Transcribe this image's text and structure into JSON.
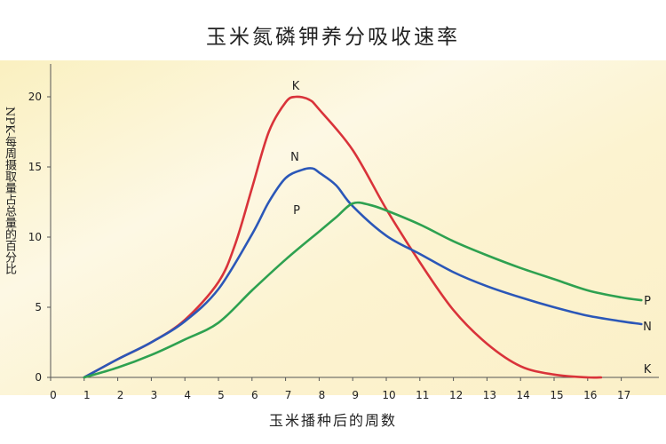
{
  "chart_data": {
    "type": "line",
    "title": "玉米氮磷钾养分吸收速率",
    "xlabel": "玉米播种后的周数",
    "ylabel": "NPK-每周摄取量占总量的百分比",
    "xlim": [
      0,
      18
    ],
    "ylim": [
      0,
      22
    ],
    "xticks": [
      0,
      1,
      2,
      3,
      4,
      5,
      6,
      7,
      8,
      9,
      10,
      11,
      12,
      13,
      14,
      15,
      16,
      17
    ],
    "yticks": [
      0,
      5,
      10,
      15,
      20
    ],
    "grid": false,
    "colors": {
      "K": "#d9333a",
      "N": "#2b57b8",
      "P": "#2ea150",
      "axis": "#555555"
    },
    "series": [
      {
        "name": "K",
        "color": "#d9333a",
        "points": [
          [
            1,
            0
          ],
          [
            2,
            1.3
          ],
          [
            3,
            2.5
          ],
          [
            4,
            4.1
          ],
          [
            5,
            6.8
          ],
          [
            5.5,
            9.5
          ],
          [
            6,
            13.5
          ],
          [
            6.5,
            17.5
          ],
          [
            7,
            19.6
          ],
          [
            7.3,
            20
          ],
          [
            7.7,
            19.8
          ],
          [
            8,
            19.1
          ],
          [
            9,
            16.2
          ],
          [
            10,
            12
          ],
          [
            11,
            8.2
          ],
          [
            12,
            4.8
          ],
          [
            13,
            2.4
          ],
          [
            14,
            0.8
          ],
          [
            15,
            0.2
          ],
          [
            16,
            0
          ],
          [
            16.4,
            0
          ]
        ]
      },
      {
        "name": "N",
        "color": "#2b57b8",
        "points": [
          [
            1,
            0
          ],
          [
            2,
            1.3
          ],
          [
            3,
            2.5
          ],
          [
            4,
            4.0
          ],
          [
            5,
            6.3
          ],
          [
            6,
            10.2
          ],
          [
            6.5,
            12.5
          ],
          [
            7,
            14.2
          ],
          [
            7.5,
            14.8
          ],
          [
            7.8,
            14.9
          ],
          [
            8,
            14.6
          ],
          [
            8.5,
            13.7
          ],
          [
            9,
            12.2
          ],
          [
            10,
            10.1
          ],
          [
            11,
            8.8
          ],
          [
            12,
            7.5
          ],
          [
            13,
            6.5
          ],
          [
            14,
            5.7
          ],
          [
            15,
            5.0
          ],
          [
            16,
            4.4
          ],
          [
            17,
            4.0
          ],
          [
            17.6,
            3.8
          ]
        ]
      },
      {
        "name": "P",
        "color": "#2ea150",
        "points": [
          [
            1,
            0
          ],
          [
            2,
            0.7
          ],
          [
            3,
            1.6
          ],
          [
            4,
            2.7
          ],
          [
            5,
            3.9
          ],
          [
            6,
            6.2
          ],
          [
            7,
            8.4
          ],
          [
            8,
            10.4
          ],
          [
            8.5,
            11.4
          ],
          [
            9,
            12.4
          ],
          [
            9.5,
            12.3
          ],
          [
            10,
            11.9
          ],
          [
            11,
            10.9
          ],
          [
            12,
            9.7
          ],
          [
            13,
            8.7
          ],
          [
            14,
            7.8
          ],
          [
            15,
            7.0
          ],
          [
            16,
            6.2
          ],
          [
            17,
            5.7
          ],
          [
            17.6,
            5.5
          ]
        ]
      }
    ],
    "annotations": {
      "K": "K",
      "N": "N",
      "P": "P"
    },
    "legend": {
      "right_labels": [
        "P",
        "N",
        "K"
      ]
    }
  }
}
